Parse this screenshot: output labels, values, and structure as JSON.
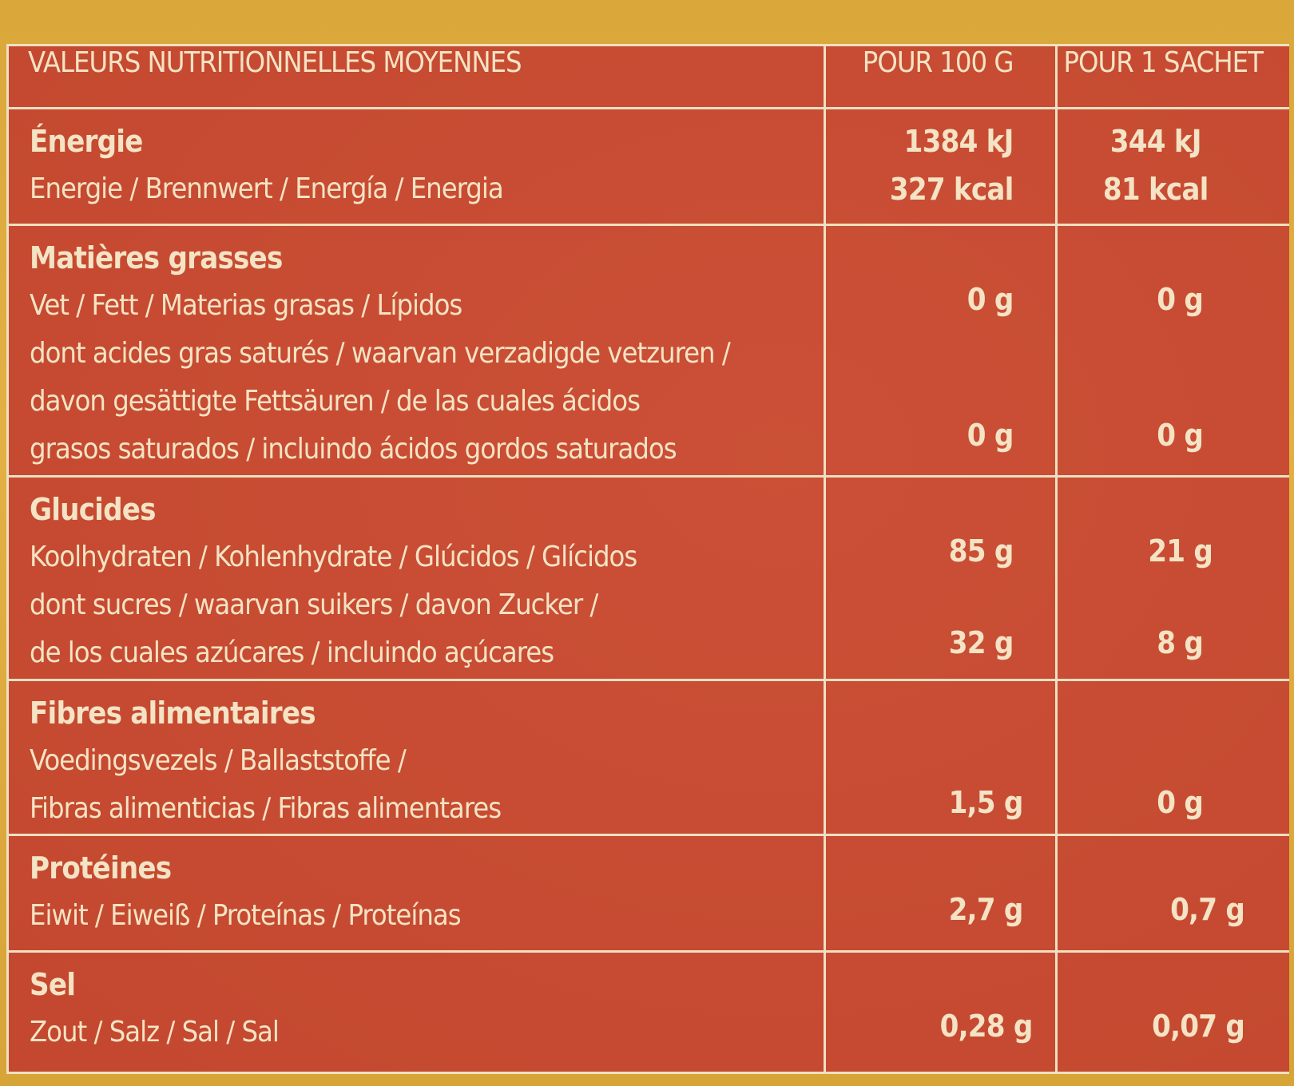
{
  "header": {
    "label": "VALEURS NUTRITIONNELLES MOYENNES",
    "per100": "POUR 100 g",
    "perSachet": "POUR 1 SACHET"
  },
  "rows": [
    {
      "title": "Énergie",
      "lines": [
        "Energie / Brennwert / Energía / Energia"
      ],
      "per100": [
        "1384 kJ",
        "327 kcal"
      ],
      "perSachet": [
        "344 kJ",
        "81 kcal"
      ]
    },
    {
      "title": "Matières grasses",
      "lines": [
        "Vet / Fett / Materias grasas / Lípidos",
        "dont acides gras saturés / waarvan verzadigde vetzuren /",
        "davon gesättigte Fettsäuren / de las cuales ácidos",
        "grasos saturados / incluindo ácidos gordos saturados"
      ],
      "per100": [
        "0 g",
        "0 g"
      ],
      "perSachet": [
        "0 g",
        "0 g"
      ]
    },
    {
      "title": "Glucides",
      "lines": [
        "Koolhydraten / Kohlenhydrate / Glúcidos / Glícidos",
        "dont sucres / waarvan suikers / davon Zucker /",
        "de los cuales azúcares / incluindo açúcares"
      ],
      "per100": [
        "85 g",
        "32 g"
      ],
      "perSachet": [
        "21 g",
        "8 g"
      ]
    },
    {
      "title": "Fibres alimentaires",
      "lines": [
        "Voedingsvezels / Ballaststoffe /",
        "Fibras alimenticias / Fibras alimentares"
      ],
      "per100": [
        "1,5 g"
      ],
      "perSachet": [
        "0 g"
      ]
    },
    {
      "title": "Protéines",
      "lines": [
        "Eiwit / Eiweiß / Proteínas / Proteínas"
      ],
      "per100": [
        "2,7 g"
      ],
      "perSachet": [
        "0,7 g"
      ]
    },
    {
      "title": "Sel",
      "lines": [
        "Zout / Salz / Sal / Sal"
      ],
      "per100": [
        "0,28 g"
      ],
      "perSachet": [
        "0,07 g"
      ]
    }
  ],
  "colors": {
    "panel": "#c94a30",
    "text": "#f4e3c4",
    "border": "#efe0c2",
    "background": "#e2b043"
  }
}
